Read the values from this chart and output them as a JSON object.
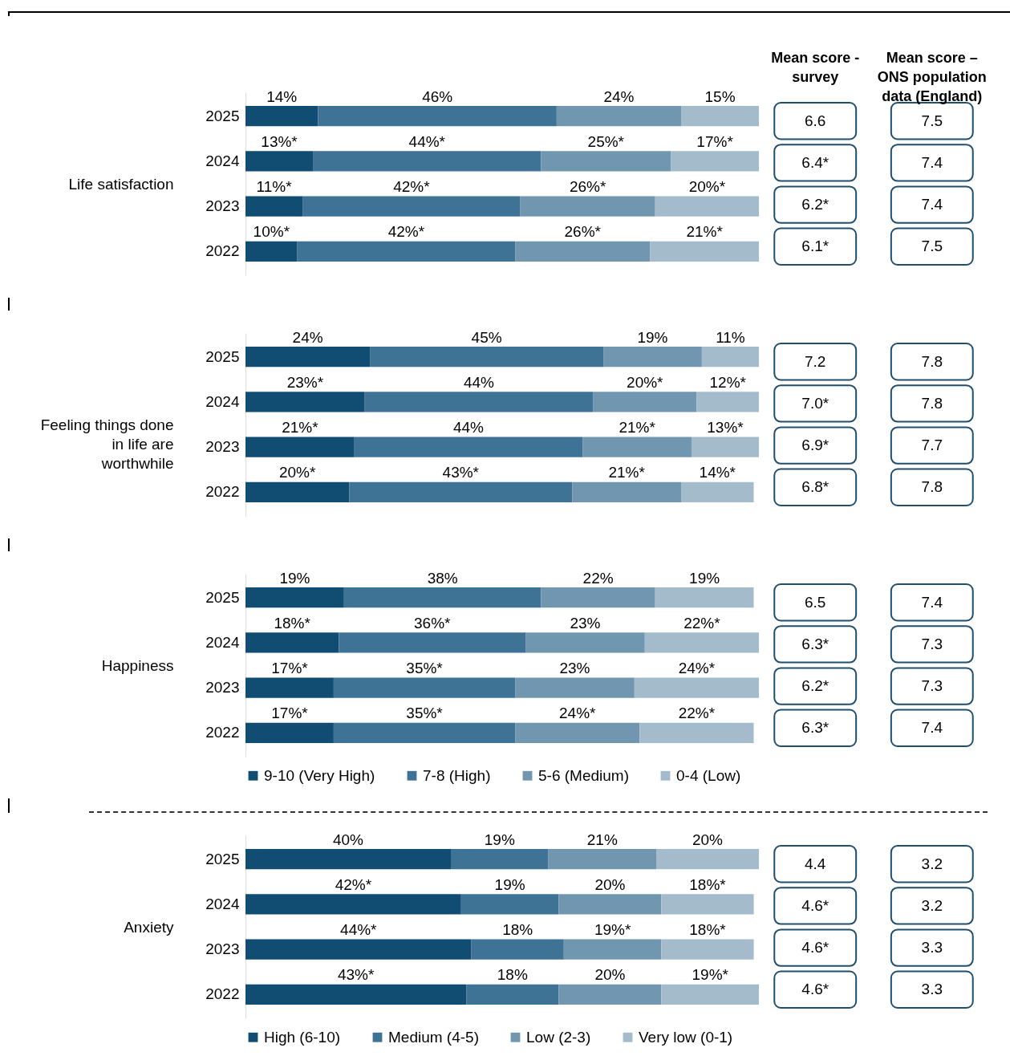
{
  "chart_data": [
    {
      "type": "bar",
      "orientation": "horizontal",
      "stacked": true,
      "ylabel": "Life satisfaction",
      "categories": [
        "2025",
        "2024",
        "2023",
        "2022"
      ],
      "series": [
        {
          "color": "#114d72",
          "values": [
            14,
            13,
            11,
            10
          ],
          "value_labels": [
            "14%",
            "13%*",
            "11%*",
            "10%*"
          ]
        },
        {
          "color": "#3f7396",
          "values": [
            46,
            44,
            42,
            42
          ],
          "value_labels": [
            "46%",
            "44%*",
            "42%*",
            "42%*"
          ]
        },
        {
          "color": "#7096b0",
          "values": [
            24,
            25,
            26,
            26
          ],
          "value_labels": [
            "24%",
            "25%*",
            "26%*",
            "26%*"
          ]
        },
        {
          "color": "#a3bbcb",
          "values": [
            15,
            17,
            20,
            21
          ],
          "value_labels": [
            "15%",
            "17%*",
            "20%*",
            "21%*"
          ]
        }
      ]
    },
    {
      "type": "other",
      "categories": [
        "Mean score - survey",
        "Mean score – ONS population data (England)"
      ],
      "annotations": [
        "6.6",
        "7.5",
        "6.4*",
        "7.4",
        "6.2*",
        "7.4",
        "6.1*",
        "7.5"
      ]
    },
    {
      "type": "bar",
      "orientation": "horizontal",
      "stacked": true,
      "ylabel": "Feeling things done in life are worthwhile",
      "categories": [
        "2025",
        "2024",
        "2023",
        "2022"
      ],
      "series": [
        {
          "color": "#114d72",
          "values": [
            24,
            23,
            21,
            20
          ],
          "value_labels": [
            "24%",
            "23%*",
            "21%*",
            "20%*"
          ]
        },
        {
          "color": "#3f7396",
          "values": [
            45,
            44,
            44,
            43
          ],
          "value_labels": [
            "45%",
            "44%",
            "44%",
            "43%*"
          ]
        },
        {
          "color": "#7096b0",
          "values": [
            19,
            20,
            21,
            21
          ],
          "value_labels": [
            "19%",
            "20%*",
            "21%*",
            "21%*"
          ]
        },
        {
          "color": "#a3bbcb",
          "values": [
            11,
            12,
            13,
            14
          ],
          "value_labels": [
            "11%",
            "12%*",
            "13%*",
            "14%*"
          ]
        }
      ]
    },
    {
      "type": "other",
      "categories": [
        null,
        null
      ],
      "annotations": [
        "7.2",
        "7.8",
        "7.0*",
        "7.8",
        "6.9*",
        "7.7",
        "6.8*",
        "7.8"
      ]
    },
    {
      "type": "bar",
      "orientation": "horizontal",
      "stacked": true,
      "ylabel": "Happiness",
      "categories": [
        "2025",
        "2024",
        "2023",
        "2022"
      ],
      "legend": "bottom",
      "series": [
        {
          "name": "9-10 (Very High)",
          "color": "#114d72",
          "values": [
            19,
            18,
            17,
            17
          ],
          "value_labels": [
            "19%",
            "18%*",
            "17%*",
            "17%*"
          ]
        },
        {
          "name": "7-8 (High)",
          "color": "#3f7396",
          "values": [
            38,
            36,
            35,
            35
          ],
          "value_labels": [
            "38%",
            "36%*",
            "35%*",
            "35%*"
          ]
        },
        {
          "name": "5-6 (Medium)",
          "color": "#7096b0",
          "values": [
            22,
            23,
            23,
            24
          ],
          "value_labels": [
            "22%",
            "23%",
            "23%",
            "24%*"
          ]
        },
        {
          "name": "0-4 (Low)",
          "color": "#a3bbcb",
          "values": [
            19,
            22,
            24,
            22
          ],
          "value_labels": [
            "19%",
            "22%*",
            "24%*",
            "22%*"
          ]
        }
      ]
    },
    {
      "type": "other",
      "categories": [
        null,
        null
      ],
      "annotations": [
        "6.5",
        "7.4",
        "6.3*",
        "7.3",
        "6.2*",
        "7.3",
        "6.3*",
        "7.4"
      ]
    },
    {
      "type": "bar",
      "orientation": "horizontal",
      "stacked": true,
      "ylabel": "Anxiety",
      "categories": [
        "2025",
        "2024",
        "2023",
        "2022"
      ],
      "legend": "bottom",
      "series": [
        {
          "name": "High (6-10)",
          "color": "#114d72",
          "values": [
            40,
            42,
            44,
            43
          ],
          "value_labels": [
            "40%",
            "42%*",
            "44%*",
            "43%*"
          ]
        },
        {
          "name": "Medium (4-5)",
          "color": "#3f7396",
          "values": [
            19,
            19,
            18,
            18
          ],
          "value_labels": [
            "19%",
            "19%",
            "18%",
            "18%"
          ]
        },
        {
          "name": "Low (2-3)",
          "color": "#7096b0",
          "values": [
            21,
            20,
            19,
            20
          ],
          "value_labels": [
            "21%",
            "20%",
            "19%*",
            "20%"
          ]
        },
        {
          "name": "Very low (0-1)",
          "color": "#a3bbcb",
          "values": [
            20,
            18,
            18,
            19
          ],
          "value_labels": [
            "20%",
            "18%*",
            "18%*",
            "19%*"
          ]
        }
      ]
    },
    {
      "type": "other",
      "categories": [
        null,
        null
      ],
      "annotations": [
        "4.4",
        "3.2",
        "4.6*",
        "3.2",
        "4.6*",
        "3.3",
        "4.6*",
        "3.3"
      ]
    }
  ]
}
